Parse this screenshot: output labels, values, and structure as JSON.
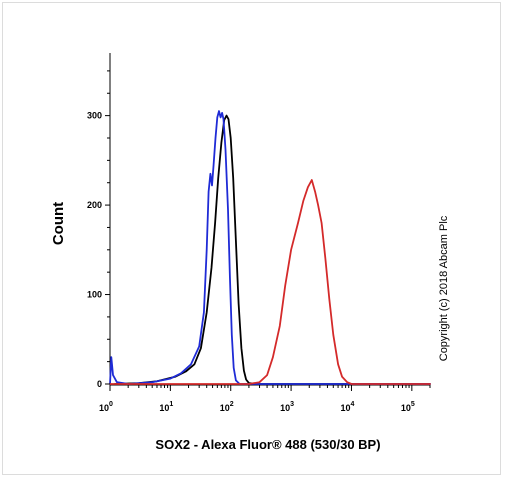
{
  "chart_data": {
    "type": "line",
    "xlabel": "SOX2 - Alexa Fluor® 488 (530/30 BP)",
    "ylabel": "Count",
    "x_scale": "log",
    "xlim": [
      1,
      200000
    ],
    "ylim": [
      0,
      370
    ],
    "x_ticks": [
      {
        "value": 1,
        "base": "10",
        "exp": "0"
      },
      {
        "value": 10,
        "base": "10",
        "exp": "1"
      },
      {
        "value": 100,
        "base": "10",
        "exp": "2"
      },
      {
        "value": 1000,
        "base": "10",
        "exp": "3"
      },
      {
        "value": 10000,
        "base": "10",
        "exp": "4"
      },
      {
        "value": 100000,
        "base": "10",
        "exp": "5"
      }
    ],
    "y_ticks": [
      {
        "value": 0,
        "label": "0"
      },
      {
        "value": 100,
        "label": "100"
      },
      {
        "value": 200,
        "label": "200"
      },
      {
        "value": 300,
        "label": "300"
      }
    ],
    "annotation": "Copyright (c) 2018 Abcam Plc",
    "series": [
      {
        "color": "#000000",
        "points": [
          [
            1.2,
            0
          ],
          [
            3,
            1
          ],
          [
            6,
            3
          ],
          [
            12,
            8
          ],
          [
            18,
            14
          ],
          [
            25,
            22
          ],
          [
            32,
            40
          ],
          [
            40,
            80
          ],
          [
            48,
            130
          ],
          [
            55,
            180
          ],
          [
            62,
            230
          ],
          [
            70,
            270
          ],
          [
            78,
            295
          ],
          [
            85,
            300
          ],
          [
            92,
            296
          ],
          [
            100,
            275
          ],
          [
            110,
            230
          ],
          [
            122,
            160
          ],
          [
            135,
            90
          ],
          [
            150,
            40
          ],
          [
            165,
            15
          ],
          [
            180,
            5
          ],
          [
            200,
            1
          ],
          [
            300,
            0
          ],
          [
            200000,
            0
          ]
        ]
      },
      {
        "color": "#1f2bd6",
        "points": [
          [
            1.0,
            0
          ],
          [
            1.05,
            30
          ],
          [
            1.12,
            10
          ],
          [
            1.3,
            2
          ],
          [
            2,
            0
          ],
          [
            5,
            2
          ],
          [
            10,
            6
          ],
          [
            15,
            12
          ],
          [
            22,
            22
          ],
          [
            30,
            42
          ],
          [
            36,
            80
          ],
          [
            40,
            150
          ],
          [
            43,
            215
          ],
          [
            46,
            235
          ],
          [
            49,
            222
          ],
          [
            52,
            245
          ],
          [
            56,
            275
          ],
          [
            60,
            298
          ],
          [
            64,
            305
          ],
          [
            68,
            298
          ],
          [
            72,
            303
          ],
          [
            76,
            296
          ],
          [
            82,
            262
          ],
          [
            90,
            195
          ],
          [
            97,
            120
          ],
          [
            104,
            55
          ],
          [
            112,
            18
          ],
          [
            122,
            4
          ],
          [
            140,
            0
          ],
          [
            200000,
            0
          ]
        ]
      },
      {
        "color": "#d42a2a",
        "points": [
          [
            1,
            0
          ],
          [
            200,
            0
          ],
          [
            300,
            2
          ],
          [
            400,
            10
          ],
          [
            500,
            30
          ],
          [
            650,
            65
          ],
          [
            800,
            110
          ],
          [
            1000,
            150
          ],
          [
            1300,
            180
          ],
          [
            1600,
            205
          ],
          [
            1900,
            220
          ],
          [
            2200,
            228
          ],
          [
            2500,
            215
          ],
          [
            2800,
            200
          ],
          [
            3200,
            180
          ],
          [
            3700,
            140
          ],
          [
            4300,
            95
          ],
          [
            5000,
            55
          ],
          [
            6000,
            22
          ],
          [
            7000,
            8
          ],
          [
            8500,
            2
          ],
          [
            10000,
            0
          ],
          [
            200000,
            0
          ]
        ]
      }
    ]
  }
}
